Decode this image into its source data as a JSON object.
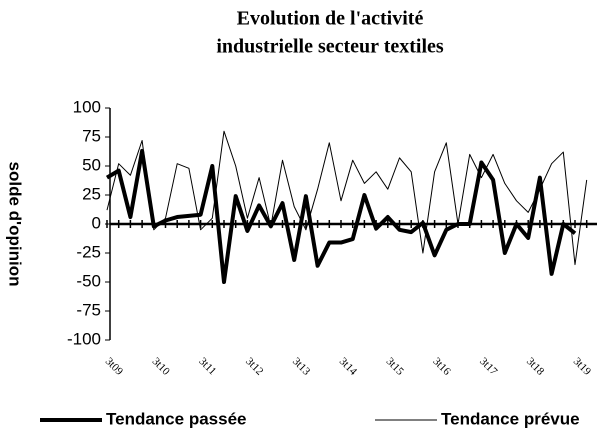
{
  "chart_data": {
    "type": "line",
    "title": [
      "Evolution de l'activité",
      "industrielle  secteur textiles"
    ],
    "y_label": "solde d'opinion",
    "categories": [
      null,
      "3t09",
      null,
      null,
      null,
      "3t10",
      null,
      null,
      null,
      "3t11",
      null,
      null,
      null,
      "3t12",
      null,
      null,
      null,
      "3t13",
      null,
      null,
      null,
      "3t14",
      null,
      null,
      null,
      "3t15",
      null,
      null,
      null,
      "3t16",
      null,
      null,
      null,
      "3t17",
      null,
      null,
      null,
      "3t18",
      null,
      null,
      null,
      "3t19"
    ],
    "series": [
      {
        "name": "Tendance passée",
        "color": "#000000",
        "width": 4,
        "values": [
          40,
          46,
          6,
          63,
          -2,
          3,
          6,
          7,
          8,
          50,
          -50,
          24,
          -6,
          16,
          -2,
          18,
          -31,
          24,
          -36,
          -16,
          -16,
          -13,
          25,
          -4,
          6,
          -5,
          -7,
          1,
          -27,
          -5,
          0,
          0,
          53,
          38,
          -25,
          0,
          -12,
          40,
          -43,
          0,
          -8,
          null
        ]
      },
      {
        "name": "Tendance prévue",
        "color": "#000000",
        "width": 1,
        "values": [
          12,
          52,
          42,
          72,
          -5,
          5,
          52,
          48,
          -5,
          5,
          80,
          50,
          5,
          40,
          -2,
          55,
          15,
          -5,
          30,
          70,
          20,
          55,
          35,
          45,
          30,
          57,
          45,
          -25,
          45,
          70,
          0,
          60,
          40,
          60,
          35,
          20,
          10,
          30,
          52,
          62,
          -35,
          38
        ]
      }
    ],
    "ylim": [
      -100,
      100
    ],
    "yticks": [
      -100,
      -75,
      -50,
      -25,
      0,
      25,
      50,
      75,
      100
    ]
  }
}
